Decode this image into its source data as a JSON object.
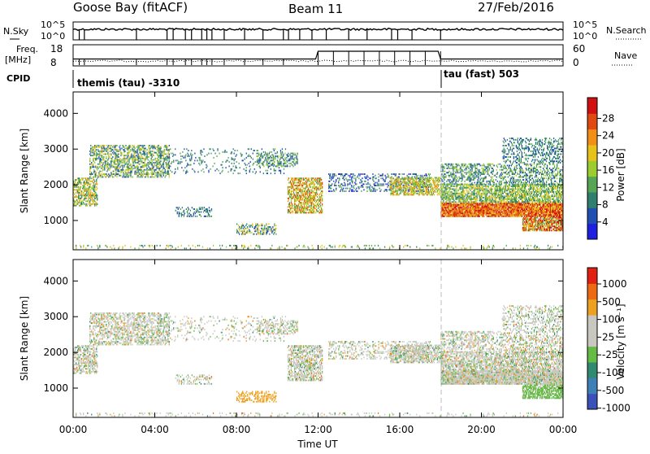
{
  "header": {
    "station": "Goose Bay (fitACF)",
    "beam": "Beam 11",
    "date": "27/Feb/2016"
  },
  "strip_labels": {
    "nsky": "N.Sky",
    "nsky_ticks": [
      "10^5",
      "10^0"
    ],
    "nsearch": "N.Search",
    "nsearch_ticks": [
      "10^5",
      "10^0"
    ],
    "freq_top": "Freq.",
    "freq_unit": "[MHz]",
    "freq_ticks": [
      "18",
      "8"
    ],
    "nave": "Nave",
    "nave_ticks": [
      "60",
      "0"
    ],
    "cpid": "CPID",
    "cpid_mode1": "themis (tau) -3310",
    "cpid_mode2": "tau (fast) 503"
  },
  "colorbars": {
    "power": {
      "label": "Power [dB]",
      "ticks": [
        "4",
        "8",
        "12",
        "16",
        "20",
        "24",
        "28"
      ],
      "colors": [
        "#1f1fe0",
        "#1f4fb0",
        "#2f7f6f",
        "#55a555",
        "#9ccc2f",
        "#e6c21a",
        "#f28f18",
        "#e04a12",
        "#d01010"
      ]
    },
    "velocity": {
      "label": "Velocity [m s⁻¹]",
      "ticks": [
        "1000",
        "500",
        "100",
        "25",
        "-25",
        "-100",
        "-500",
        "-1000"
      ],
      "colors": [
        "#3a52b8",
        "#3f7fb8",
        "#2f8a6f",
        "#66bb44",
        "#c8c8c0",
        "#c8c8c0",
        "#eea020",
        "#ee6a12",
        "#e02010"
      ]
    }
  },
  "chart_data": [
    {
      "type": "heatmap",
      "name": "power-panel",
      "ylabel": "Slant Range [km]",
      "xlabel": "",
      "y_ticks": [
        1000,
        2000,
        3000,
        4000
      ],
      "ylim": [
        180,
        4600
      ],
      "xlim": [
        0,
        24
      ],
      "x_ticks": [
        "00:00",
        "04:00",
        "08:00",
        "12:00",
        "16:00",
        "20:00",
        "00:00"
      ],
      "mode_change_hour": 18.0,
      "grid": false
    },
    {
      "type": "heatmap",
      "name": "velocity-panel",
      "ylabel": "Slant Range [km]",
      "xlabel": "Time UT",
      "y_ticks": [
        1000,
        2000,
        3000,
        4000
      ],
      "ylim": [
        180,
        4600
      ],
      "xlim": [
        0,
        24
      ],
      "x_ticks": [
        "00:00",
        "04:00",
        "08:00",
        "12:00",
        "16:00",
        "20:00",
        "00:00"
      ],
      "mode_change_hour": 18.0,
      "grid": false
    }
  ]
}
